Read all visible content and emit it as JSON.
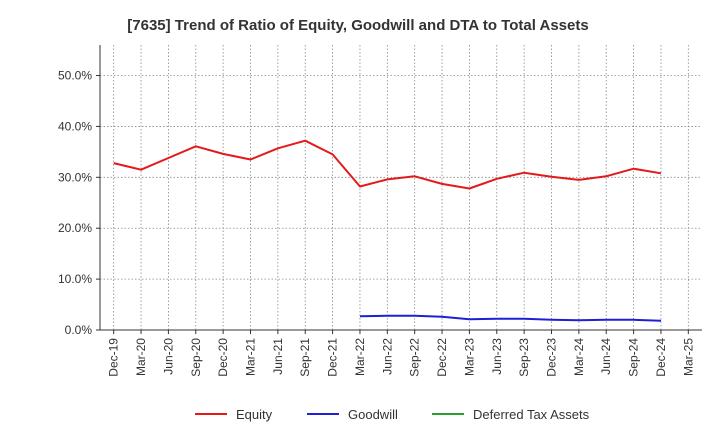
{
  "chart_data": {
    "type": "line",
    "title": "[7635]  Trend of Ratio of Equity, Goodwill and DTA to Total Assets",
    "xlabel": "",
    "ylabel": "",
    "ylim": [
      0,
      0.56
    ],
    "y_ticks": [
      {
        "value": 0.0,
        "label": "0.0%"
      },
      {
        "value": 0.1,
        "label": "10.0%"
      },
      {
        "value": 0.2,
        "label": "20.0%"
      },
      {
        "value": 0.3,
        "label": "30.0%"
      },
      {
        "value": 0.4,
        "label": "40.0%"
      },
      {
        "value": 0.5,
        "label": "50.0%"
      }
    ],
    "categories": [
      "Dec-19",
      "Mar-20",
      "Jun-20",
      "Sep-20",
      "Dec-20",
      "Mar-21",
      "Jun-21",
      "Sep-21",
      "Dec-21",
      "Mar-22",
      "Jun-22",
      "Sep-22",
      "Dec-22",
      "Mar-23",
      "Jun-23",
      "Sep-23",
      "Dec-23",
      "Mar-24",
      "Jun-24",
      "Sep-24",
      "Dec-24",
      "Mar-25"
    ],
    "grid": true,
    "legend_position": "bottom",
    "series": [
      {
        "name": "Equity",
        "color": "#e31a1c",
        "values": [
          0.328,
          0.315,
          0.338,
          0.361,
          0.346,
          0.335,
          0.357,
          0.372,
          0.345,
          0.282,
          0.296,
          0.302,
          0.287,
          0.278,
          0.297,
          0.309,
          0.301,
          0.295,
          0.302,
          0.317,
          0.308,
          null
        ]
      },
      {
        "name": "Goodwill",
        "color": "#1f1fd6",
        "values": [
          null,
          null,
          null,
          null,
          null,
          null,
          null,
          null,
          null,
          0.027,
          0.028,
          0.028,
          0.026,
          0.021,
          0.022,
          0.022,
          0.02,
          0.019,
          0.02,
          0.02,
          0.018,
          null
        ]
      },
      {
        "name": "Deferred Tax Assets",
        "color": "#2ca02c",
        "values": [
          null,
          null,
          null,
          null,
          null,
          null,
          null,
          null,
          null,
          null,
          null,
          null,
          null,
          null,
          null,
          null,
          null,
          null,
          null,
          null,
          null,
          null
        ]
      }
    ]
  }
}
